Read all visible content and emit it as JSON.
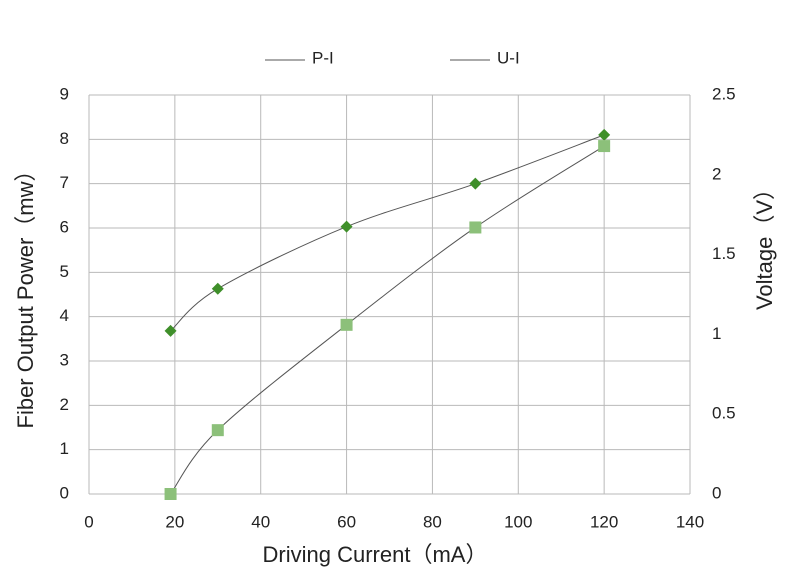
{
  "chart_data": {
    "type": "line",
    "x_label": "Driving Current（mA）",
    "y_label": "Fiber Output Power（mw）",
    "y2_label": "Voltage（V）",
    "x": [
      19,
      30,
      60,
      90,
      120
    ],
    "series": [
      {
        "name": "P-I",
        "color": "#3f8f2a",
        "line_color": "#555555",
        "marker": "diamond",
        "values": [
          3.68,
          4.63,
          6.03,
          7.0,
          8.1
        ]
      },
      {
        "name": "U-I",
        "color": "#8cc07a",
        "line_color": "#555555",
        "marker": "square",
        "axis": "y2",
        "values": [
          0,
          0.4,
          1.06,
          1.67,
          2.18
        ]
      }
    ],
    "xlim": [
      0,
      140
    ],
    "xticks": [
      0,
      20,
      40,
      60,
      80,
      100,
      120,
      140
    ],
    "ylim": [
      0,
      9
    ],
    "yticks": [
      0,
      1,
      2,
      3,
      4,
      5,
      6,
      7,
      8,
      9
    ],
    "y2lim": [
      0,
      2.5
    ],
    "y2ticks": [
      0,
      0.5,
      1,
      1.5,
      2,
      2.5
    ],
    "grid": true,
    "legend": "top",
    "smooth": true
  }
}
